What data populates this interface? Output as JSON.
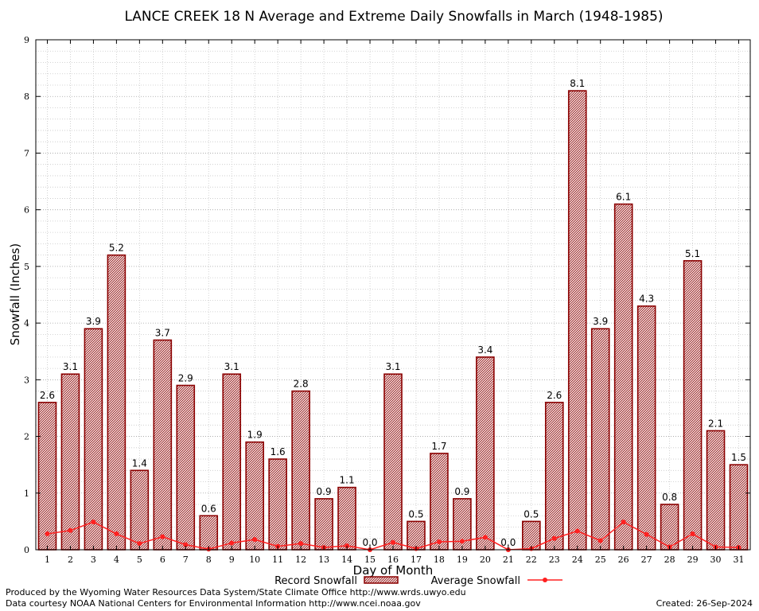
{
  "chart_data": {
    "type": "bar",
    "title": "LANCE CREEK 18 N Average and Extreme Daily Snowfalls in March (1948-1985)",
    "xlabel": "Day of Month",
    "ylabel": "Snowfall (Inches)",
    "ylim": [
      0,
      9
    ],
    "yticks": [
      "0",
      "1",
      "2",
      "3",
      "4",
      "5",
      "6",
      "7",
      "8",
      "9"
    ],
    "grid": true,
    "legend_position": "bottom-center",
    "categories": [
      "1",
      "2",
      "3",
      "4",
      "5",
      "6",
      "7",
      "8",
      "9",
      "10",
      "11",
      "12",
      "13",
      "14",
      "15",
      "16",
      "17",
      "18",
      "19",
      "20",
      "21",
      "22",
      "23",
      "24",
      "25",
      "26",
      "27",
      "28",
      "29",
      "30",
      "31"
    ],
    "series": [
      {
        "name": "Record Snowfall",
        "kind": "bar",
        "color": "#b22222",
        "labels": [
          "2.6",
          "3.1",
          "3.9",
          "5.2",
          "1.4",
          "3.7",
          "2.9",
          "0.6",
          "3.1",
          "1.9",
          "1.6",
          "2.8",
          "0.9",
          "1.1",
          "0.0",
          "3.1",
          "0.5",
          "1.7",
          "0.9",
          "3.4",
          "0.0",
          "0.5",
          "2.6",
          "8.1",
          "3.9",
          "6.1",
          "4.3",
          "0.8",
          "5.1",
          "2.1",
          "1.5"
        ],
        "values": [
          2.6,
          3.1,
          3.9,
          5.2,
          1.4,
          3.7,
          2.9,
          0.6,
          3.1,
          1.9,
          1.6,
          2.8,
          0.9,
          1.1,
          0.0,
          3.1,
          0.5,
          1.7,
          0.9,
          3.4,
          0.0,
          0.5,
          2.6,
          8.1,
          3.9,
          6.1,
          4.3,
          0.8,
          5.1,
          2.1,
          1.5
        ]
      },
      {
        "name": "Average Snowfall",
        "kind": "line",
        "color": "#ff2020",
        "values": [
          0.28,
          0.34,
          0.49,
          0.28,
          0.11,
          0.23,
          0.09,
          0.01,
          0.12,
          0.18,
          0.06,
          0.11,
          0.04,
          0.07,
          0.0,
          0.13,
          0.02,
          0.14,
          0.15,
          0.22,
          0.0,
          0.02,
          0.2,
          0.33,
          0.16,
          0.49,
          0.27,
          0.05,
          0.28,
          0.05,
          0.04
        ]
      }
    ]
  },
  "footer": {
    "produced_by": "Produced by the Wyoming Water Resources Data System/State Climate Office http://www.wrds.uwyo.edu",
    "data_courtesy": "Data courtesy NOAA National Centers for Environmental Information http://www.ncei.noaa.gov",
    "created": "Created:  26-Sep-2024"
  }
}
